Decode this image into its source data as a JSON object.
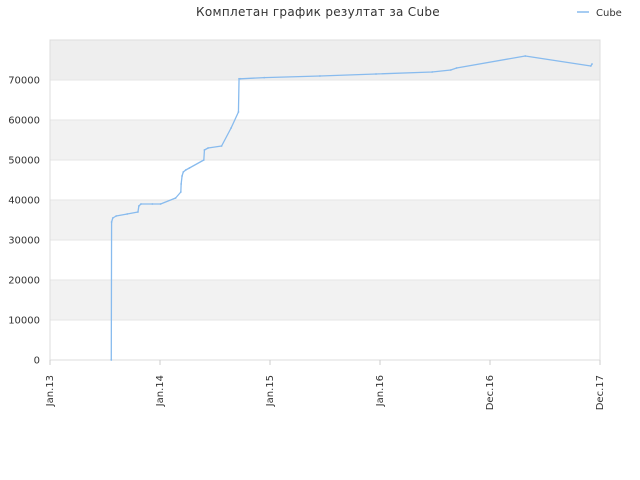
{
  "chart_data": {
    "type": "line",
    "title": "Комплетан график резултат за Cube",
    "xlabel": "",
    "ylabel": "",
    "x_tick_labels": [
      "Jan.13",
      "Jan.14",
      "Jan.15",
      "Jan.16",
      "Dec.16",
      "Dec.17"
    ],
    "y_tick_labels": [
      "0",
      "10000",
      "20000",
      "30000",
      "40000",
      "50000",
      "60000",
      "70000"
    ],
    "ylim": [
      0,
      80000
    ],
    "grid": true,
    "legend_position": "top-right",
    "series": [
      {
        "name": "Cube",
        "color": "#88bbee",
        "x": [
          "2013-07-20",
          "2013-07-21",
          "2013-07-25",
          "2013-08-05",
          "2013-09-10",
          "2013-10-15",
          "2013-10-18",
          "2013-10-25",
          "2013-12-01",
          "2013-12-28",
          "2014-02-15",
          "2014-03-04",
          "2014-03-05",
          "2014-03-08",
          "2014-03-12",
          "2014-03-20",
          "2014-04-01",
          "2014-05-18",
          "2014-05-20",
          "2014-06-01",
          "2014-07-15",
          "2014-08-15",
          "2014-09-08",
          "2014-09-10",
          "2014-09-15",
          "2014-12-01",
          "2015-06-01",
          "2015-12-01",
          "2016-06-01",
          "2016-08-01",
          "2016-08-20",
          "2017-04-01",
          "2017-11-01",
          "2017-11-05"
        ],
        "values": [
          0,
          34500,
          35500,
          36000,
          36500,
          37000,
          38500,
          39000,
          39000,
          39000,
          40500,
          42000,
          44000,
          46000,
          47000,
          47500,
          48000,
          50000,
          52500,
          53000,
          53500,
          58000,
          62000,
          70300,
          70300,
          70600,
          71000,
          71500,
          72000,
          72500,
          73000,
          76000,
          73500,
          74000
        ]
      }
    ]
  }
}
